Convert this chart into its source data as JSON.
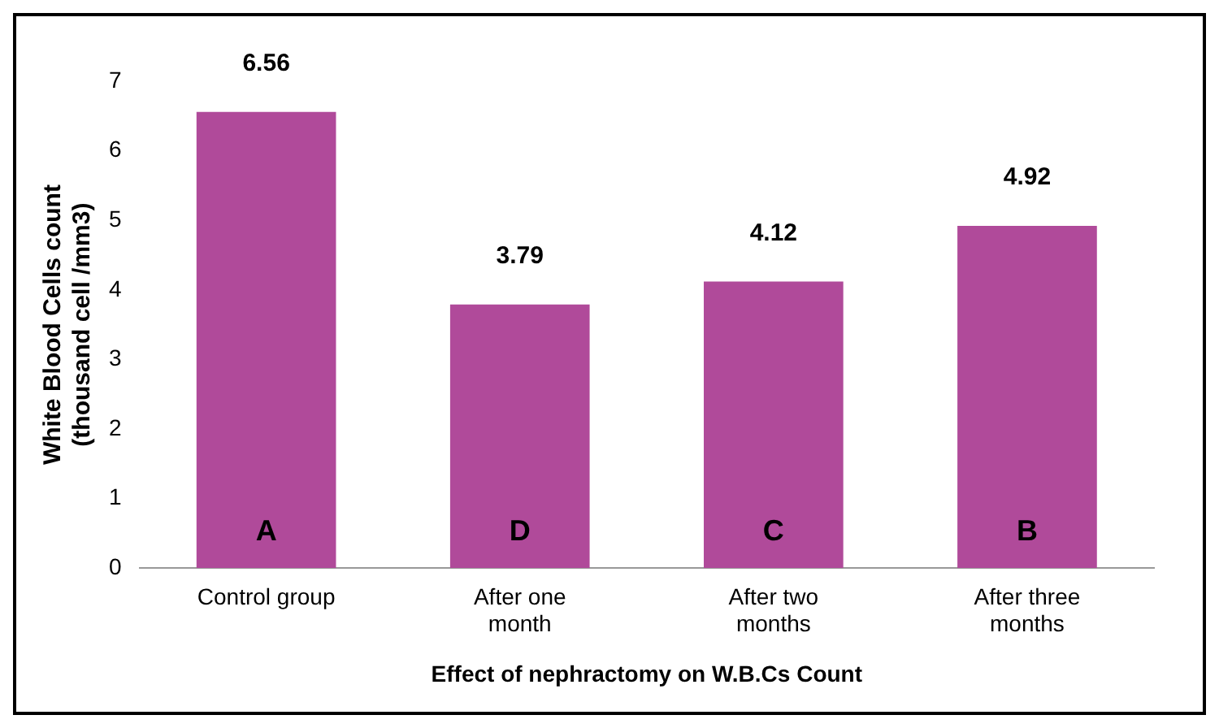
{
  "chart_data": {
    "type": "bar",
    "ylabel": "White Blood Cells count\n(thousand cell /mm3)",
    "xlabel": "Effect of nephractomy on W.B.Cs Count",
    "categories": [
      "Control group",
      "After one month",
      "After two months",
      "After three months"
    ],
    "values": [
      6.56,
      3.79,
      4.12,
      4.92
    ],
    "color": "#b04a9a",
    "ylim": [
      0,
      7
    ],
    "yticks": [
      0,
      1,
      2,
      3,
      4,
      5,
      6,
      7
    ],
    "grid": false,
    "data_labels": true,
    "annotations": [
      "A",
      "D",
      "C",
      "B"
    ]
  }
}
